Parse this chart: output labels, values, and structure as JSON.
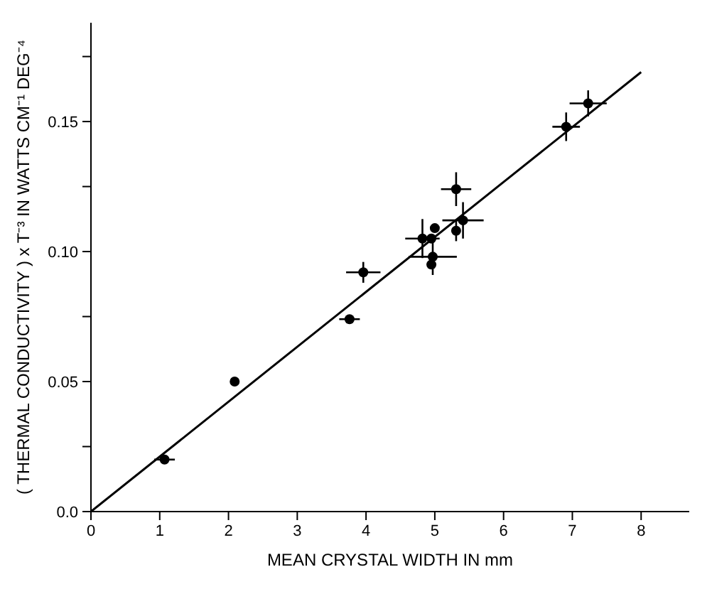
{
  "chart_data": {
    "type": "scatter",
    "xlabel": "MEAN CRYSTAL WIDTH IN mm",
    "ylabel": "( THERMAL CONDUCTIVITY ) x T⁻³ IN WATTS CM⁻¹ DEG⁻⁴",
    "xlim": [
      0,
      8.7
    ],
    "ylim": [
      0,
      0.188
    ],
    "xticks": [
      0,
      1,
      2,
      3,
      4,
      5,
      6,
      7,
      8
    ],
    "yticks": [
      {
        "value": 0,
        "label": "0.0"
      },
      {
        "value": 0.025,
        "label": null
      },
      {
        "value": 0.05,
        "label": "0.05"
      },
      {
        "value": 0.075,
        "label": null
      },
      {
        "value": 0.1,
        "label": "0.10"
      },
      {
        "value": 0.125,
        "label": null
      },
      {
        "value": 0.15,
        "label": "0.15"
      },
      {
        "value": 0.175,
        "label": null
      }
    ],
    "grid": false,
    "legend": false,
    "series": [
      {
        "marker": "circle",
        "color": "#000000",
        "x": [
          1.07,
          2.09,
          3.76,
          3.96,
          4.82,
          4.95,
          5.0,
          4.97,
          4.95,
          5.31,
          5.31,
          5.41,
          6.91,
          7.23
        ],
        "values": [
          0.02,
          0.05,
          0.074,
          0.092,
          0.105,
          0.105,
          0.109,
          0.098,
          0.095,
          0.108,
          0.124,
          0.112,
          0.148,
          0.157
        ],
        "errors": [
          null,
          null,
          null,
          0.004,
          0.0075,
          null,
          null,
          0.007,
          null,
          0.004,
          0.0065,
          0.007,
          0.0055,
          0.005
        ],
        "xerrors": [
          0.15,
          null,
          0.15,
          0.25,
          0.25,
          null,
          null,
          0.35,
          null,
          null,
          0.22,
          0.3,
          0.2,
          0.27
        ]
      },
      {
        "type": "line",
        "color": "#000000",
        "x": [
          0,
          8
        ],
        "values": [
          0,
          0.169
        ]
      }
    ]
  }
}
